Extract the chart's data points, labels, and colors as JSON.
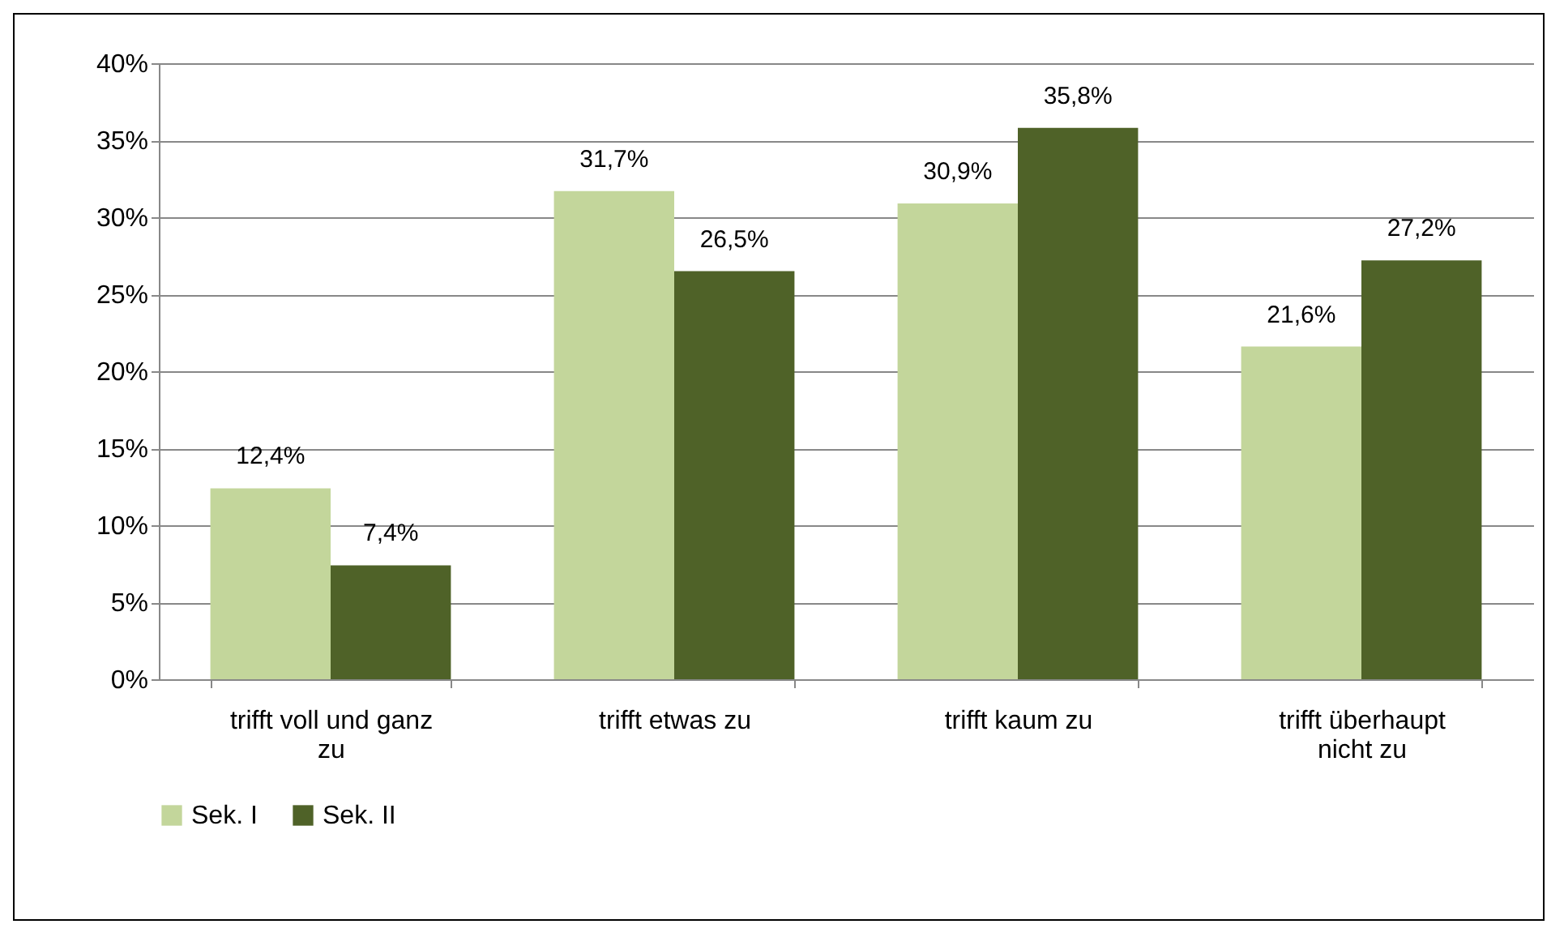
{
  "chart_data": {
    "type": "bar",
    "categories": [
      "trifft voll und ganz zu",
      "trifft etwas zu",
      "trifft kaum zu",
      "trifft überhaupt nicht zu"
    ],
    "series": [
      {
        "name": "Sek. I",
        "color": "#c3d69b",
        "values": [
          12.4,
          31.7,
          30.9,
          21.6
        ],
        "value_labels": [
          "12,4%",
          "31,7%",
          "30,9%",
          "21,6%"
        ]
      },
      {
        "name": "Sek. II",
        "color": "#4f6228",
        "values": [
          7.4,
          26.5,
          35.8,
          27.2
        ],
        "value_labels": [
          "7,4%",
          "26,5%",
          "35,8%",
          "27,2%"
        ]
      }
    ],
    "ylim": [
      0,
      40
    ],
    "yticks": [
      {
        "value": 0,
        "label": "0%"
      },
      {
        "value": 5,
        "label": "5%"
      },
      {
        "value": 10,
        "label": "10%"
      },
      {
        "value": 15,
        "label": "15%"
      },
      {
        "value": 20,
        "label": "20%"
      },
      {
        "value": 25,
        "label": "25%"
      },
      {
        "value": 30,
        "label": "30%"
      },
      {
        "value": 35,
        "label": "35%"
      },
      {
        "value": 40,
        "label": "40%"
      }
    ],
    "grid": "y",
    "legend": "bottom"
  }
}
